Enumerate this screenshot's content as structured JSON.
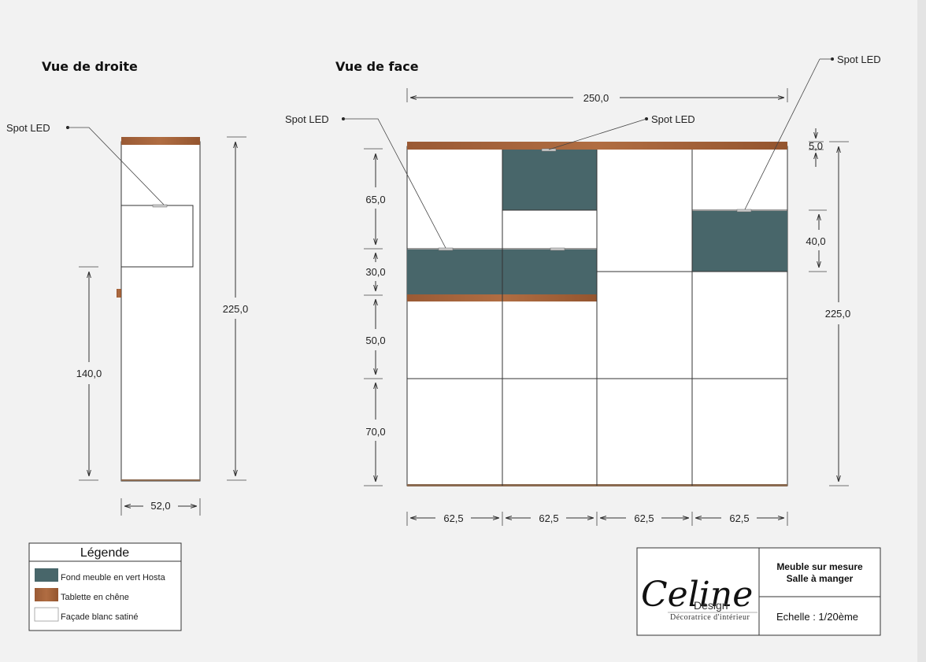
{
  "views": {
    "right": {
      "title": "Vue de droite"
    },
    "front": {
      "title": "Vue de face"
    }
  },
  "callouts": {
    "right_spot": "Spot LED",
    "front_left_spot": "Spot LED",
    "front_mid_spot": "Spot LED",
    "front_right_spot": "Spot LED"
  },
  "dimensions": {
    "right_height": "225,0",
    "right_sub_height": "140,0",
    "right_depth": "52,0",
    "front_width": "250,0",
    "front_left": [
      "65,0",
      "30,0",
      "50,0",
      "70,0"
    ],
    "front_right_top": "5,0",
    "front_right_mid": "40,0",
    "front_right_height": "225,0",
    "front_columns": [
      "62,5",
      "62,5",
      "62,5",
      "62,5"
    ]
  },
  "legend": {
    "title": "Légende",
    "items": [
      {
        "label": "Fond meuble en vert Hosta",
        "color": "#48666a"
      },
      {
        "label": "Tablette en chêne",
        "color": "#a0603a"
      },
      {
        "label": "Façade blanc satiné",
        "color": "#ffffff"
      }
    ]
  },
  "title_block": {
    "logo_script": "Celine",
    "logo_design": "Design",
    "logo_sub": "Décoratrice d'intérieur",
    "line1": "Meuble sur mesure",
    "line2": "Salle à manger",
    "scale": "Echelle : 1/20ème"
  },
  "colors": {
    "green": "#48666a",
    "oak": "#a0603a",
    "white": "#ffffff"
  }
}
